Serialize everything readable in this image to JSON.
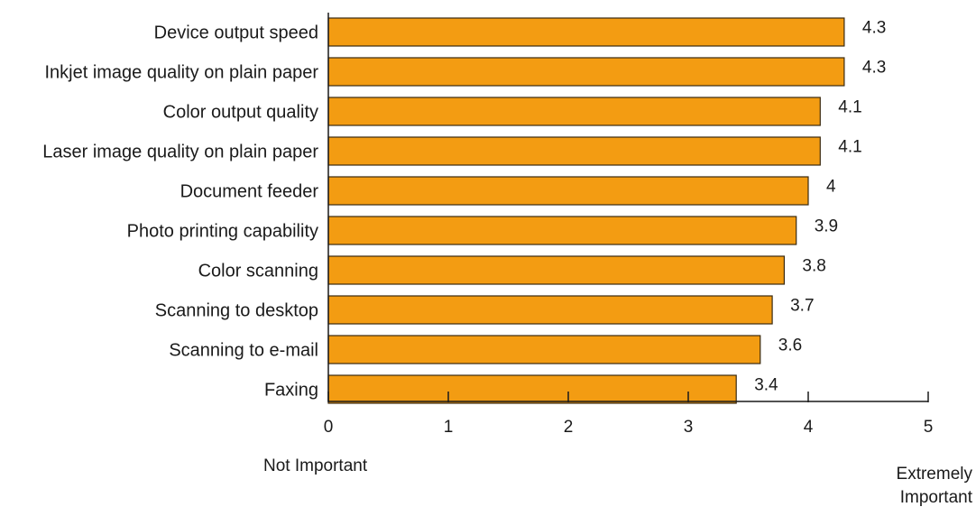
{
  "chart_data": {
    "type": "bar",
    "orientation": "horizontal",
    "categories": [
      "Device output speed",
      "Inkjet image quality on plain paper",
      "Color output quality",
      "Laser image quality on plain paper",
      "Document feeder",
      "Photo printing capability",
      "Color scanning",
      "Scanning to desktop",
      "Scanning to e-mail",
      "Faxing"
    ],
    "values": [
      4.3,
      4.3,
      4.1,
      4.1,
      4,
      3.9,
      3.8,
      3.7,
      3.6,
      3.4
    ],
    "value_labels": [
      "4.3",
      "4.3",
      "4.1",
      "4.1",
      "4",
      "3.9",
      "3.8",
      "3.7",
      "3.6",
      "3.4"
    ],
    "xlim": [
      0,
      5
    ],
    "xticks": [
      "0",
      "1",
      "2",
      "3",
      "4",
      "5"
    ],
    "scale_low_label": "Not Important",
    "scale_high_label": [
      "Extremely",
      "Important"
    ],
    "bar_color": "#F39C12",
    "bar_edge_color": "#3a2a10",
    "grid": false,
    "legend": false
  }
}
